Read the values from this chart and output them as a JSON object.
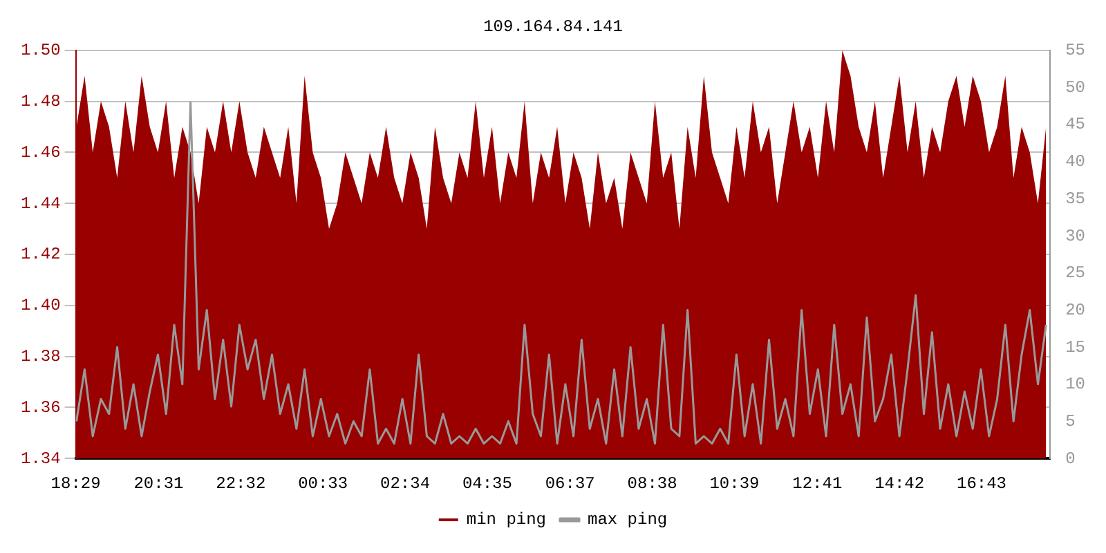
{
  "chart_data": {
    "type": "line",
    "title": "109.164.84.141",
    "x": [
      "--01-01T18:30",
      "--01-01T18:42",
      "--01-01T18:54",
      "--01-01T19:06",
      "--01-01T19:18",
      "--01-01T19:30",
      "--01-01T19:42",
      "--01-01T19:54",
      "--01-01T20:06",
      "--01-01T20:18",
      "--01-01T20:30",
      "--01-01T20:42",
      "--01-01T20:54",
      "--01-01T21:06",
      "--01-01T21:18",
      "--01-01T21:30",
      "--01-01T21:42",
      "--01-01T21:54",
      "--01-01T22:06",
      "--01-01T22:18",
      "--01-01T22:30",
      "--01-01T22:42",
      "--01-01T22:54",
      "--01-01T23:06",
      "--01-01T23:18",
      "--01-01T23:30",
      "--01-01T23:42",
      "--01-01T23:54",
      "--01-02T00:06",
      "--01-02T00:18",
      "--01-02T00:30",
      "--01-02T00:42",
      "--01-02T00:54",
      "--01-02T01:06",
      "--01-02T01:18",
      "--01-02T01:30",
      "--01-02T01:42",
      "--01-02T01:54",
      "--01-02T02:06",
      "--01-02T02:18",
      "--01-02T02:30",
      "--01-02T02:42",
      "--01-02T02:54",
      "--01-02T03:06",
      "--01-02T03:18",
      "--01-02T03:30",
      "--01-02T03:42",
      "--01-02T03:54",
      "--01-02T04:06",
      "--01-02T04:18",
      "--01-02T04:30",
      "--01-02T04:42",
      "--01-02T04:54",
      "--01-02T05:06",
      "--01-02T05:18",
      "--01-02T05:30",
      "--01-02T05:42",
      "--01-02T05:54",
      "--01-02T06:06",
      "--01-02T06:18",
      "--01-02T06:30",
      "--01-02T06:42",
      "--01-02T06:54",
      "--01-02T07:06",
      "--01-02T07:18",
      "--01-02T07:30",
      "--01-02T07:42",
      "--01-02T07:54",
      "--01-02T08:06",
      "--01-02T08:18",
      "--01-02T08:30",
      "--01-02T08:42",
      "--01-02T08:54",
      "--01-02T09:06",
      "--01-02T09:18",
      "--01-02T09:30",
      "--01-02T09:42",
      "--01-02T09:54",
      "--01-02T10:06",
      "--01-02T10:18",
      "--01-02T10:30",
      "--01-02T10:42",
      "--01-02T10:54",
      "--01-02T11:06",
      "--01-02T11:18",
      "--01-02T11:30",
      "--01-02T11:42",
      "--01-02T11:54",
      "--01-02T12:06",
      "--01-02T12:18",
      "--01-02T12:30",
      "--01-02T12:42",
      "--01-02T12:54",
      "--01-02T13:06",
      "--01-02T13:18",
      "--01-02T13:30",
      "--01-02T13:42",
      "--01-02T13:54",
      "--01-02T14:06",
      "--01-02T14:18",
      "--01-02T14:30",
      "--01-02T14:42",
      "--01-02T14:54",
      "--01-02T15:06",
      "--01-02T15:18",
      "--01-02T15:30",
      "--01-02T15:42",
      "--01-02T15:54",
      "--01-02T16:06",
      "--01-02T16:18",
      "--01-02T16:30",
      "--01-02T16:42",
      "--01-02T16:54",
      "--01-02T17:06",
      "--01-02T17:18",
      "--01-02T17:30",
      "--01-02T17:42",
      "--01-02T17:54",
      "--01-02T18:06",
      "--01-02T18:18"
    ],
    "series": [
      {
        "name": "min ping",
        "type": "area",
        "color": "#990000",
        "values": [
          1.47,
          1.49,
          1.46,
          1.48,
          1.47,
          1.45,
          1.48,
          1.46,
          1.49,
          1.47,
          1.46,
          1.48,
          1.45,
          1.47,
          1.46,
          1.44,
          1.47,
          1.46,
          1.48,
          1.46,
          1.48,
          1.46,
          1.45,
          1.47,
          1.46,
          1.45,
          1.47,
          1.44,
          1.49,
          1.46,
          1.45,
          1.43,
          1.44,
          1.46,
          1.45,
          1.44,
          1.46,
          1.45,
          1.47,
          1.45,
          1.44,
          1.46,
          1.45,
          1.43,
          1.47,
          1.45,
          1.44,
          1.46,
          1.45,
          1.48,
          1.45,
          1.47,
          1.44,
          1.46,
          1.45,
          1.48,
          1.44,
          1.46,
          1.45,
          1.47,
          1.44,
          1.46,
          1.45,
          1.43,
          1.46,
          1.44,
          1.45,
          1.43,
          1.46,
          1.45,
          1.44,
          1.48,
          1.45,
          1.46,
          1.43,
          1.47,
          1.45,
          1.49,
          1.46,
          1.45,
          1.44,
          1.47,
          1.45,
          1.48,
          1.46,
          1.47,
          1.44,
          1.46,
          1.48,
          1.46,
          1.47,
          1.45,
          1.48,
          1.46,
          1.5,
          1.49,
          1.47,
          1.46,
          1.48,
          1.45,
          1.47,
          1.49,
          1.46,
          1.48,
          1.45,
          1.47,
          1.46,
          1.48,
          1.49,
          1.47,
          1.49,
          1.48,
          1.46,
          1.47,
          1.49,
          1.45,
          1.47,
          1.46,
          1.44,
          1.47
        ]
      },
      {
        "name": "max ping",
        "type": "line",
        "axis": "y2",
        "color": "#999999",
        "values": [
          5,
          12,
          3,
          8,
          6,
          15,
          4,
          10,
          3,
          9,
          14,
          6,
          18,
          10,
          48,
          12,
          20,
          8,
          16,
          7,
          18,
          12,
          16,
          8,
          14,
          6,
          10,
          4,
          12,
          3,
          8,
          3,
          6,
          2,
          5,
          3,
          12,
          2,
          4,
          2,
          8,
          2,
          14,
          3,
          2,
          6,
          2,
          3,
          2,
          4,
          2,
          3,
          2,
          5,
          2,
          18,
          6,
          3,
          14,
          2,
          10,
          3,
          16,
          4,
          8,
          2,
          12,
          3,
          15,
          4,
          8,
          2,
          18,
          4,
          3,
          20,
          2,
          3,
          2,
          4,
          2,
          14,
          3,
          10,
          2,
          16,
          4,
          8,
          3,
          20,
          6,
          12,
          3,
          18,
          6,
          10,
          3,
          19,
          5,
          8,
          14,
          3,
          12,
          22,
          6,
          17,
          4,
          10,
          3,
          9,
          4,
          12,
          3,
          8,
          18,
          5,
          14,
          20,
          10,
          18
        ]
      }
    ],
    "xlim": [
      "--01-01T18:29",
      "--01-02T18:24"
    ],
    "xticks": [
      {
        "value": "--01-01T18:29",
        "label": "18:29"
      },
      {
        "value": "--01-01T20:31",
        "label": "20:31"
      },
      {
        "value": "--01-01T22:32",
        "label": "22:32"
      },
      {
        "value": "--01-02T00:33",
        "label": "00:33"
      },
      {
        "value": "--01-02T02:34",
        "label": "02:34"
      },
      {
        "value": "--01-02T04:35",
        "label": "04:35"
      },
      {
        "value": "--01-02T06:37",
        "label": "06:37"
      },
      {
        "value": "--01-02T08:38",
        "label": "08:38"
      },
      {
        "value": "--01-02T10:39",
        "label": "10:39"
      },
      {
        "value": "--01-02T12:41",
        "label": "12:41"
      },
      {
        "value": "--01-02T14:42",
        "label": "14:42"
      },
      {
        "value": "--01-02T16:43",
        "label": "16:43"
      }
    ],
    "ylim": [
      1.34,
      1.5
    ],
    "yticks": [
      {
        "value": 1.34,
        "label": "1.34"
      },
      {
        "value": 1.36,
        "label": "1.36"
      },
      {
        "value": 1.38,
        "label": "1.38"
      },
      {
        "value": 1.4,
        "label": "1.40"
      },
      {
        "value": 1.42,
        "label": "1.42"
      },
      {
        "value": 1.44,
        "label": "1.44"
      },
      {
        "value": 1.46,
        "label": "1.46"
      },
      {
        "value": 1.48,
        "label": "1.48"
      },
      {
        "value": 1.5,
        "label": "1.50"
      }
    ],
    "y2lim": [
      0,
      55
    ],
    "y2ticks": [
      0,
      5,
      10,
      15,
      20,
      25,
      30,
      35,
      40,
      45,
      50,
      55
    ],
    "grid": "y",
    "legend": "bottom",
    "marker": "none"
  }
}
